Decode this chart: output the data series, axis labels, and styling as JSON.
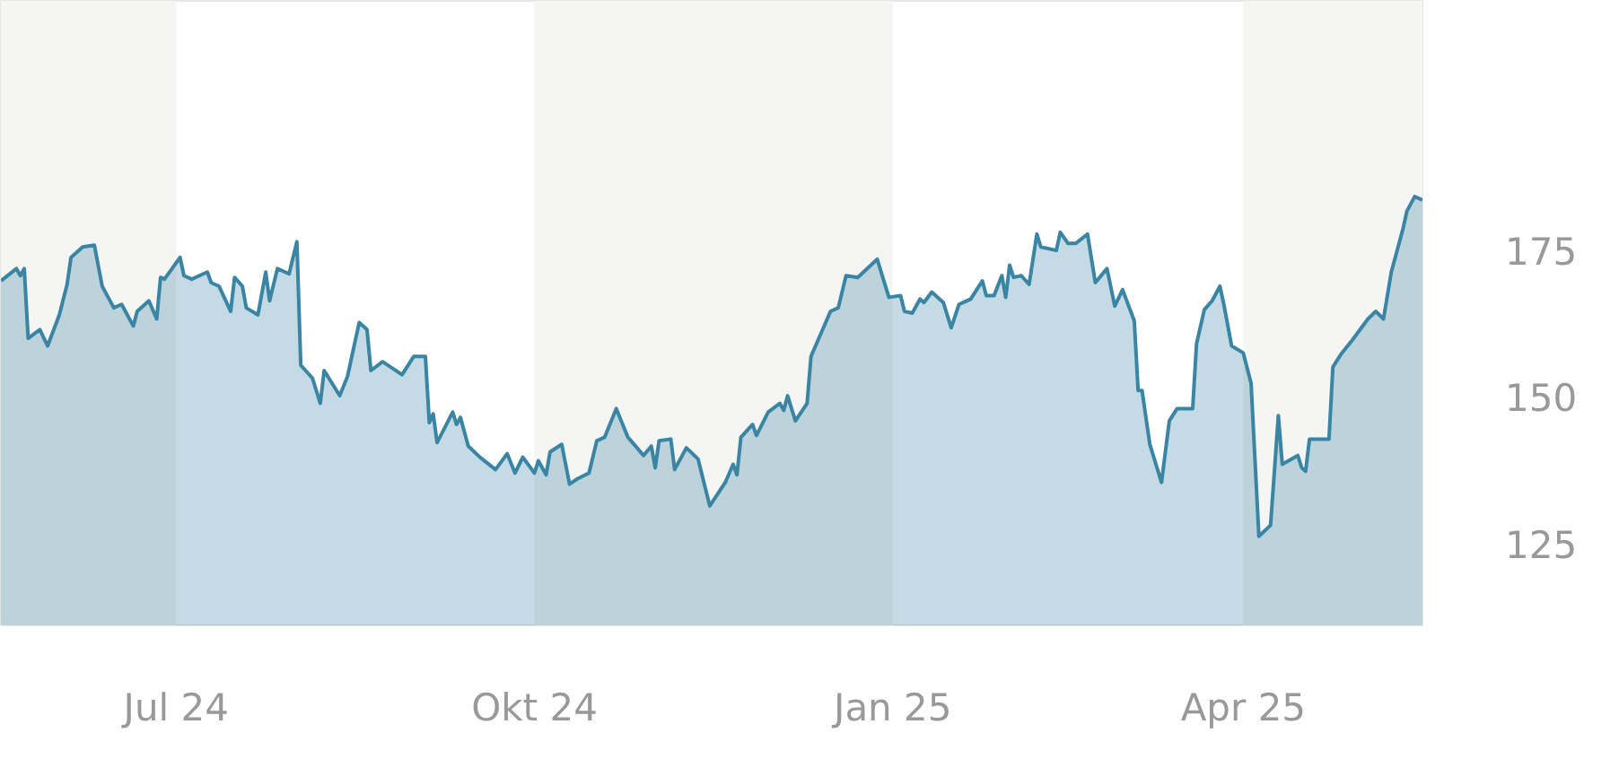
{
  "chart_data": {
    "type": "area",
    "x": [
      "2024-05-17",
      "2024-05-21",
      "2024-05-22",
      "2024-05-23",
      "2024-05-24",
      "2024-05-27",
      "2024-05-29",
      "2024-06-01",
      "2024-06-03",
      "2024-06-04",
      "2024-06-07",
      "2024-06-10",
      "2024-06-12",
      "2024-06-15",
      "2024-06-17",
      "2024-06-20",
      "2024-06-21",
      "2024-06-24",
      "2024-06-26",
      "2024-06-27",
      "2024-06-28",
      "2024-07-02",
      "2024-07-03",
      "2024-07-05",
      "2024-07-09",
      "2024-07-10",
      "2024-07-12",
      "2024-07-15",
      "2024-07-16",
      "2024-07-18",
      "2024-07-19",
      "2024-07-22",
      "2024-07-24",
      "2024-07-25",
      "2024-07-27",
      "2024-07-30",
      "2024-08-01",
      "2024-08-02",
      "2024-08-05",
      "2024-08-07",
      "2024-08-08",
      "2024-08-12",
      "2024-08-14",
      "2024-08-17",
      "2024-08-19",
      "2024-08-20",
      "2024-08-23",
      "2024-08-28",
      "2024-08-31",
      "2024-09-03",
      "2024-09-04",
      "2024-09-05",
      "2024-09-06",
      "2024-09-10",
      "2024-09-11",
      "2024-09-12",
      "2024-09-14",
      "2024-09-17",
      "2024-09-21",
      "2024-09-24",
      "2024-09-26",
      "2024-09-28",
      "2024-10-01",
      "2024-10-02",
      "2024-10-04",
      "2024-10-05",
      "2024-10-08",
      "2024-10-10",
      "2024-10-12",
      "2024-10-15",
      "2024-10-17",
      "2024-10-19",
      "2024-10-22",
      "2024-10-25",
      "2024-10-29",
      "2024-10-31",
      "2024-11-01",
      "2024-11-02",
      "2024-11-05",
      "2024-11-06",
      "2024-11-09",
      "2024-11-12",
      "2024-11-15",
      "2024-11-19",
      "2024-11-21",
      "2024-11-22",
      "2024-11-23",
      "2024-11-26",
      "2024-11-27",
      "2024-11-30",
      "2024-12-03",
      "2024-12-04",
      "2024-12-05",
      "2024-12-07",
      "2024-12-10",
      "2024-12-11",
      "2024-12-14",
      "2024-12-16",
      "2024-12-18",
      "2024-12-20",
      "2024-12-23",
      "2024-12-28",
      "2024-12-31",
      "2025-01-03",
      "2025-01-04",
      "2025-01-06",
      "2025-01-08",
      "2025-01-09",
      "2025-01-11",
      "2025-01-14",
      "2025-01-16",
      "2025-01-18",
      "2025-01-21",
      "2025-01-24",
      "2025-01-25",
      "2025-01-27",
      "2025-01-29",
      "2025-01-30",
      "2025-01-31",
      "2025-02-01",
      "2025-02-03",
      "2025-02-05",
      "2025-02-07",
      "2025-02-08",
      "2025-02-12",
      "2025-02-13",
      "2025-02-15",
      "2025-02-17",
      "2025-02-20",
      "2025-02-22",
      "2025-02-25",
      "2025-02-27",
      "2025-03-01",
      "2025-03-04",
      "2025-03-05",
      "2025-03-06",
      "2025-03-08",
      "2025-03-11",
      "2025-03-13",
      "2025-03-15",
      "2025-03-19",
      "2025-03-20",
      "2025-03-22",
      "2025-03-24",
      "2025-03-26",
      "2025-03-27",
      "2025-03-29",
      "2025-04-01",
      "2025-04-03",
      "2025-04-05",
      "2025-04-08",
      "2025-04-10",
      "2025-04-11",
      "2025-04-15",
      "2025-04-16",
      "2025-04-17",
      "2025-04-18",
      "2025-04-23",
      "2025-04-24",
      "2025-04-26",
      "2025-04-29",
      "2025-05-03",
      "2025-05-05",
      "2025-05-07",
      "2025-05-09",
      "2025-05-12",
      "2025-05-13",
      "2025-05-15",
      "2025-05-17"
    ],
    "series": [
      {
        "color": "#3a85a4",
        "values": [
          169.8,
          171.9,
          170.7,
          171.9,
          160.0,
          161.5,
          158.7,
          164.0,
          169.2,
          173.8,
          175.6,
          175.9,
          168.9,
          165.2,
          165.8,
          162.1,
          164.6,
          166.4,
          163.3,
          170.4,
          170.1,
          173.8,
          170.7,
          170.1,
          171.3,
          169.5,
          168.9,
          164.6,
          170.4,
          168.9,
          165.2,
          164.0,
          171.3,
          166.4,
          171.9,
          171.0,
          176.5,
          155.4,
          153.2,
          148.9,
          154.5,
          150.2,
          153.5,
          162.7,
          161.5,
          154.5,
          156.0,
          153.8,
          156.9,
          156.9,
          145.6,
          147.1,
          142.2,
          147.4,
          145.3,
          146.5,
          141.6,
          139.7,
          137.6,
          140.3,
          137.0,
          139.7,
          137.0,
          139.1,
          136.7,
          140.6,
          141.9,
          135.1,
          136.0,
          137.0,
          142.5,
          143.1,
          148.0,
          143.1,
          140.0,
          141.6,
          137.9,
          142.5,
          142.8,
          137.6,
          141.3,
          139.4,
          131.4,
          135.4,
          138.5,
          136.7,
          143.1,
          145.3,
          143.4,
          147.4,
          148.9,
          147.7,
          150.2,
          145.9,
          148.9,
          156.9,
          161.5,
          164.6,
          165.2,
          170.7,
          170.4,
          173.5,
          167.0,
          167.3,
          164.6,
          164.3,
          166.7,
          166.1,
          167.9,
          166.1,
          161.8,
          165.8,
          166.7,
          169.8,
          167.3,
          167.3,
          170.7,
          167.0,
          172.5,
          170.4,
          170.7,
          169.2,
          177.8,
          175.6,
          175.0,
          178.1,
          176.2,
          176.2,
          177.8,
          169.5,
          171.9,
          165.5,
          168.3,
          163.0,
          151.1,
          151.1,
          141.9,
          135.4,
          145.9,
          148.0,
          148.0,
          159.1,
          164.9,
          166.4,
          168.9,
          165.8,
          158.7,
          157.5,
          152.3,
          126.2,
          128.1,
          146.8,
          138.5,
          140.0,
          137.9,
          137.3,
          142.8,
          142.8,
          155.1,
          157.2,
          159.7,
          163.3,
          164.6,
          163.3,
          171.3,
          178.7,
          181.7,
          184.2,
          183.6
        ]
      }
    ],
    "xlim": [
      "2024-05-17",
      "2025-05-17"
    ],
    "ylim": [
      111,
      217.6
    ],
    "xticks": [
      {
        "value": "2024-07-01",
        "label": "Jul 24"
      },
      {
        "value": "2024-10-01",
        "label": "Okt 24"
      },
      {
        "value": "2025-01-01",
        "label": "Jan 25"
      },
      {
        "value": "2025-04-01",
        "label": "Apr 25"
      }
    ],
    "yticks": [
      125,
      150,
      175
    ],
    "bands": [
      {
        "axis": "x",
        "from": "2024-05-17",
        "to": "2024-07-01",
        "color": "#f5f5f3"
      },
      {
        "axis": "x",
        "from": "2024-10-01",
        "to": "2025-01-01",
        "color": "#f5f5f3"
      },
      {
        "axis": "x",
        "from": "2025-04-01",
        "to": "2025-05-17",
        "color": "#f5f5f3"
      }
    ]
  }
}
